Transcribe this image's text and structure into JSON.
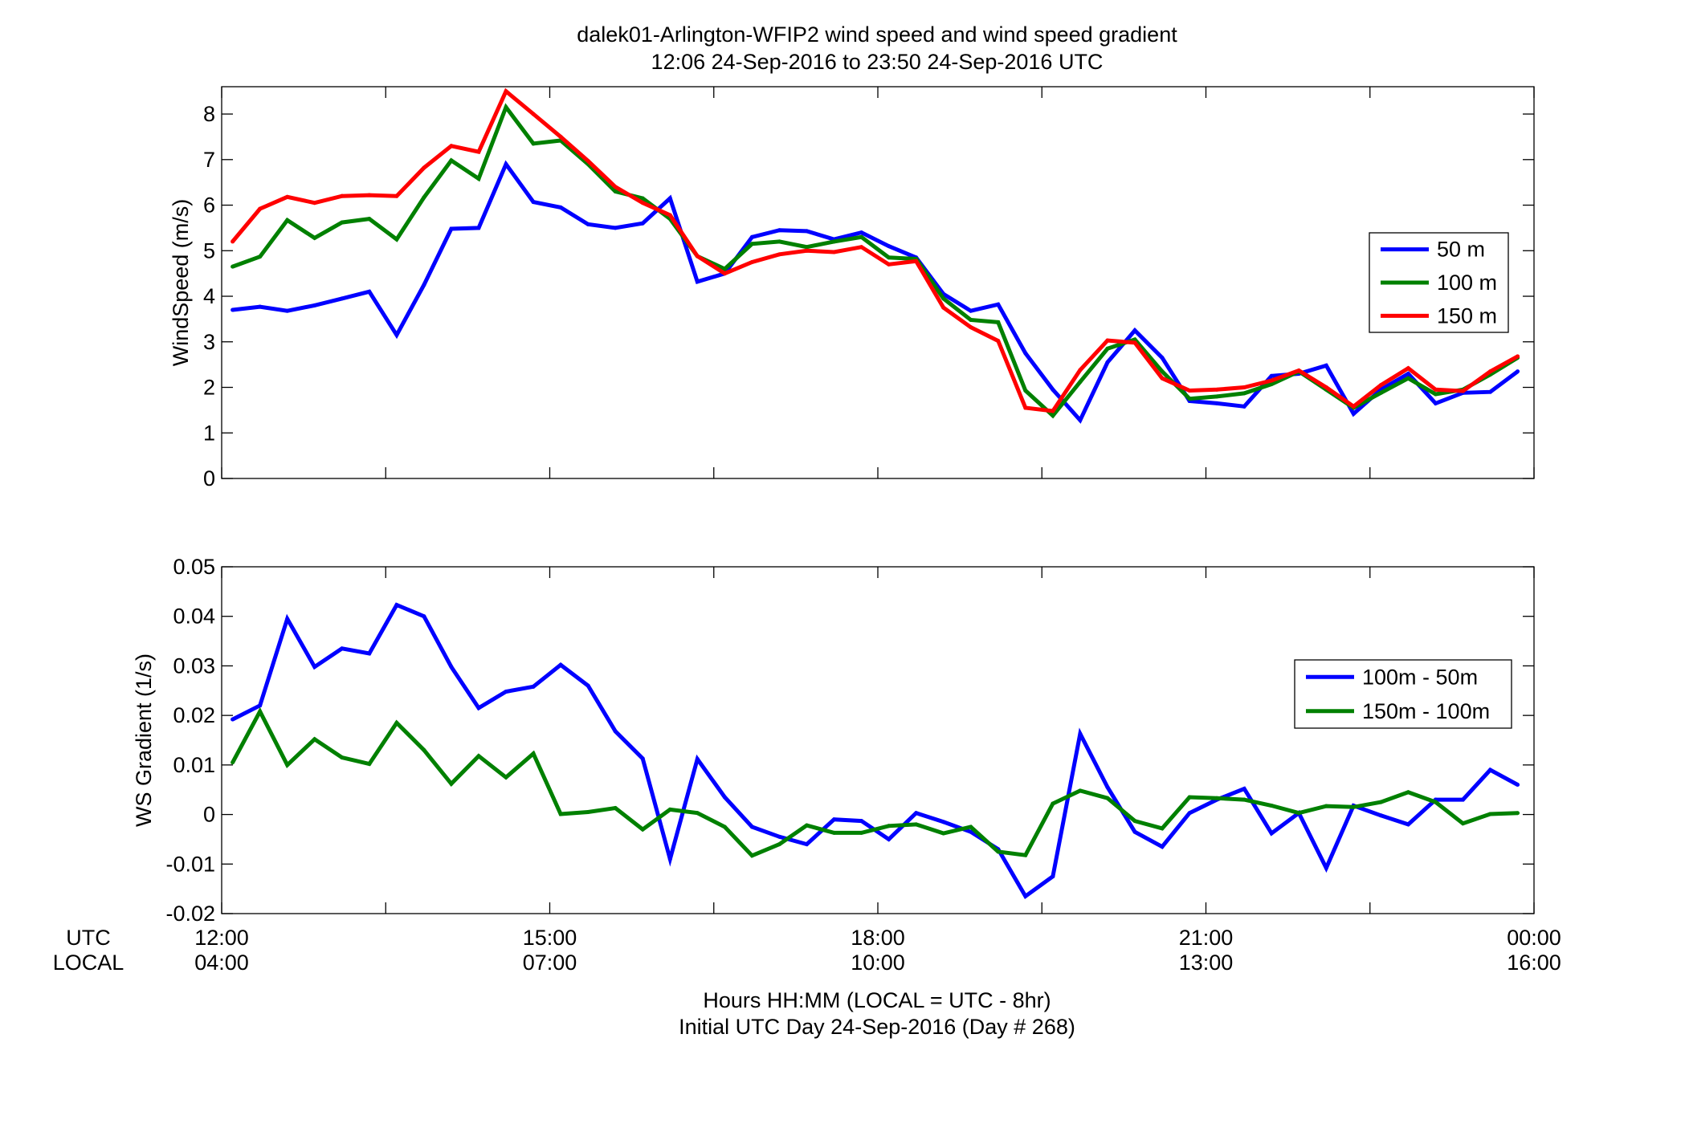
{
  "figure": {
    "title_line1": "dalek01-Arlington-WFIP2  wind speed and wind speed gradient",
    "title_line2": "12:06 24-Sep-2016 to 23:50 24-Sep-2016  UTC",
    "row_label_utc": "UTC",
    "row_label_local": "LOCAL",
    "xlabel_line1": "Hours HH:MM  (LOCAL = UTC - 8hr)",
    "xlabel_line2": "Initial UTC Day 24-Sep-2016 (Day # 268)",
    "utc_ticks": [
      "12:00",
      "15:00",
      "18:00",
      "21:00",
      "00:00"
    ],
    "local_ticks": [
      "04:00",
      "07:00",
      "10:00",
      "13:00",
      "16:00"
    ]
  },
  "chart_data": [
    {
      "type": "line",
      "ylabel": "WindSpeed (m/s)",
      "xlabel": "",
      "x_units": "hours UTC",
      "xlim": [
        12,
        24
      ],
      "ylim": [
        0,
        8.6
      ],
      "yticks": [
        0,
        1,
        2,
        3,
        4,
        5,
        6,
        7,
        8
      ],
      "grid": false,
      "legend_position": "right",
      "x": [
        12.1,
        12.35,
        12.6,
        12.85,
        13.1,
        13.35,
        13.6,
        13.85,
        14.1,
        14.35,
        14.6,
        14.85,
        15.1,
        15.35,
        15.6,
        15.85,
        16.1,
        16.35,
        16.6,
        16.85,
        17.1,
        17.35,
        17.6,
        17.85,
        18.1,
        18.35,
        18.6,
        18.85,
        19.1,
        19.35,
        19.6,
        19.85,
        20.1,
        20.35,
        20.6,
        20.85,
        21.1,
        21.35,
        21.6,
        21.85,
        22.1,
        22.35,
        22.6,
        22.85,
        23.1,
        23.35,
        23.6,
        23.85
      ],
      "series": [
        {
          "name": "50 m",
          "color": "#0000ff",
          "values": [
            3.7,
            3.77,
            3.68,
            3.8,
            3.95,
            4.1,
            3.15,
            4.25,
            5.48,
            5.5,
            6.9,
            6.07,
            5.95,
            5.58,
            5.5,
            5.6,
            6.15,
            4.32,
            4.5,
            5.3,
            5.45,
            5.43,
            5.25,
            5.4,
            5.1,
            4.85,
            4.05,
            3.68,
            3.82,
            2.75,
            1.95,
            1.28,
            2.55,
            3.25,
            2.65,
            1.7,
            1.65,
            1.58,
            2.25,
            2.3,
            2.48,
            1.42,
            1.95,
            2.3,
            1.65,
            1.88,
            1.9,
            2.35
          ]
        },
        {
          "name": "100 m",
          "color": "#008000",
          "values": [
            4.65,
            4.87,
            5.67,
            5.28,
            5.62,
            5.7,
            5.25,
            6.17,
            6.98,
            6.58,
            8.15,
            7.35,
            7.42,
            6.9,
            6.3,
            6.15,
            5.7,
            4.88,
            4.6,
            5.15,
            5.2,
            5.08,
            5.2,
            5.3,
            4.85,
            4.82,
            3.95,
            3.48,
            3.43,
            1.93,
            1.38,
            2.12,
            2.85,
            3.05,
            2.35,
            1.75,
            1.8,
            1.87,
            2.07,
            2.35,
            1.95,
            1.55,
            1.88,
            2.2,
            1.85,
            1.95,
            2.28,
            2.65
          ]
        },
        {
          "name": "150 m",
          "color": "#ff0000",
          "values": [
            5.2,
            5.92,
            6.18,
            6.05,
            6.2,
            6.22,
            6.2,
            6.82,
            7.3,
            7.17,
            8.5,
            8.0,
            7.5,
            6.97,
            6.4,
            6.05,
            5.78,
            4.88,
            4.5,
            4.75,
            4.92,
            5.0,
            4.97,
            5.08,
            4.7,
            4.77,
            3.75,
            3.32,
            3.02,
            1.55,
            1.48,
            2.38,
            3.03,
            2.98,
            2.2,
            1.93,
            1.95,
            2.0,
            2.15,
            2.37,
            2.0,
            1.58,
            2.05,
            2.42,
            1.95,
            1.92,
            2.35,
            2.68
          ]
        }
      ]
    },
    {
      "type": "line",
      "ylabel": "WS Gradient (1/s)",
      "xlabel": "",
      "x_units": "hours UTC",
      "xlim": [
        12,
        24
      ],
      "ylim": [
        -0.02,
        0.05
      ],
      "yticks": [
        -0.02,
        -0.01,
        0,
        0.01,
        0.02,
        0.03,
        0.04,
        0.05
      ],
      "ytick_labels": [
        "-0.02",
        "-0.01",
        "0",
        "0.01",
        "0.02",
        "0.03",
        "0.04",
        "0.05"
      ],
      "grid": false,
      "legend_position": "right",
      "x": [
        12.1,
        12.35,
        12.6,
        12.85,
        13.1,
        13.35,
        13.6,
        13.85,
        14.1,
        14.35,
        14.6,
        14.85,
        15.1,
        15.35,
        15.6,
        15.85,
        16.1,
        16.35,
        16.6,
        16.85,
        17.1,
        17.35,
        17.6,
        17.85,
        18.1,
        18.35,
        18.6,
        18.85,
        19.1,
        19.35,
        19.6,
        19.85,
        20.1,
        20.35,
        20.6,
        20.85,
        21.1,
        21.35,
        21.6,
        21.85,
        22.1,
        22.35,
        22.6,
        22.85,
        23.1,
        23.35,
        23.6,
        23.85
      ],
      "series": [
        {
          "name": "100m - 50m",
          "color": "#0000ff",
          "values": [
            0.0192,
            0.022,
            0.0395,
            0.0298,
            0.0335,
            0.0325,
            0.0423,
            0.04,
            0.0298,
            0.0215,
            0.0248,
            0.0258,
            0.0302,
            0.026,
            0.0168,
            0.0113,
            -0.009,
            0.0112,
            0.0035,
            -0.0025,
            -0.0045,
            -0.006,
            -0.001,
            -0.0013,
            -0.005,
            0.0003,
            -0.0015,
            -0.0035,
            -0.007,
            -0.0165,
            -0.0125,
            0.0163,
            0.0055,
            -0.0035,
            -0.0065,
            0.0003,
            0.003,
            0.0052,
            -0.0038,
            0.0003,
            -0.0108,
            0.0018,
            -0.0002,
            -0.002,
            0.003,
            0.003,
            0.009,
            0.006
          ]
        },
        {
          "name": "150m - 100m",
          "color": "#008000",
          "values": [
            0.0105,
            0.0208,
            0.01,
            0.0152,
            0.0115,
            0.0102,
            0.0185,
            0.013,
            0.0062,
            0.0118,
            0.0075,
            0.0123,
            0.0001,
            0.0005,
            0.0013,
            -0.003,
            0.001,
            0.0003,
            -0.0025,
            -0.0083,
            -0.006,
            -0.0022,
            -0.0037,
            -0.0037,
            -0.0023,
            -0.002,
            -0.0038,
            -0.0025,
            -0.0075,
            -0.0082,
            0.0022,
            0.0048,
            0.0033,
            -0.0013,
            -0.0028,
            0.0035,
            0.0033,
            0.003,
            0.0018,
            0.0003,
            0.0017,
            0.0015,
            0.0025,
            0.0045,
            0.0025,
            -0.0018,
            0.0001,
            0.0003
          ]
        }
      ]
    }
  ]
}
